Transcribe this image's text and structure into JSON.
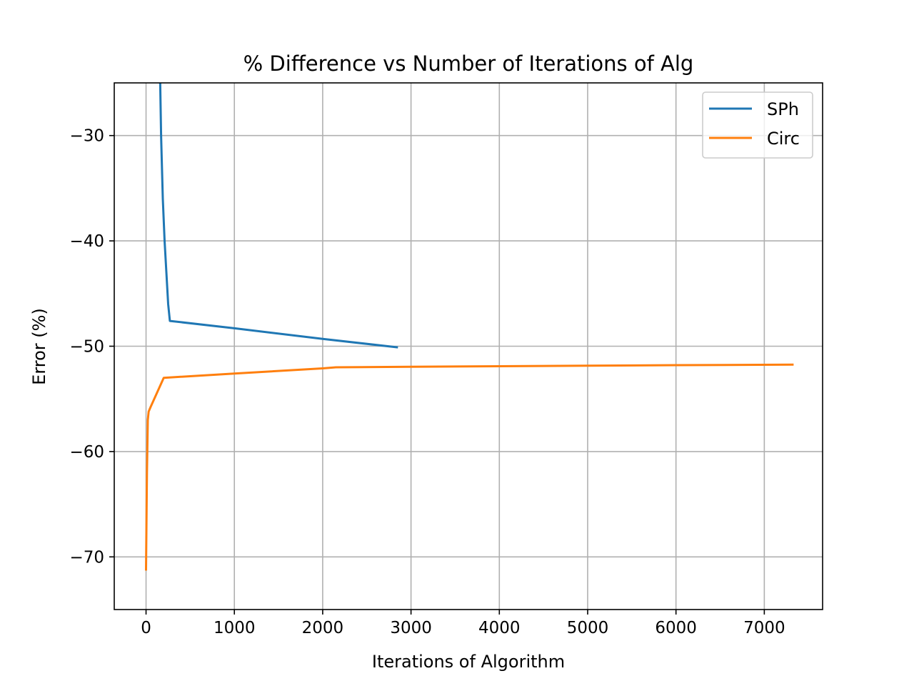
{
  "chart_data": {
    "type": "line",
    "title": "% Difference vs Number of Iterations of Alg",
    "xlabel": "Iterations of Algorithm",
    "ylabel": "Error (%)",
    "xlim": [
      -360,
      7660
    ],
    "ylim": [
      -75,
      -25
    ],
    "xticks": [
      0,
      1000,
      2000,
      3000,
      4000,
      5000,
      6000,
      7000
    ],
    "yticks": [
      -30,
      -40,
      -50,
      -60,
      -70
    ],
    "xtick_labels": [
      "0",
      "1000",
      "2000",
      "3000",
      "4000",
      "5000",
      "6000",
      "7000"
    ],
    "ytick_labels": [
      "−30",
      "−40",
      "−50",
      "−60",
      "−70"
    ],
    "grid": true,
    "legend_position": "top-right",
    "series": [
      {
        "name": "SPh",
        "color": "#1f77b4",
        "x": [
          150,
          170,
          190,
          210,
          230,
          250,
          270,
          1000,
          2000,
          2840
        ],
        "y": [
          -20,
          -30,
          -36,
          -40,
          -43,
          -46,
          -47.6,
          -48.3,
          -49.3,
          -50.1
        ]
      },
      {
        "name": "Circ",
        "color": "#ff7f0e",
        "x": [
          0,
          10,
          20,
          30,
          50,
          200,
          1000,
          2000,
          2150,
          3000,
          4000,
          5000,
          6000,
          7320
        ],
        "y": [
          -71.2,
          -62,
          -57,
          -56.2,
          -55.8,
          -53,
          -52.6,
          -52.1,
          -52,
          -51.95,
          -51.9,
          -51.85,
          -51.8,
          -51.75
        ]
      }
    ]
  }
}
